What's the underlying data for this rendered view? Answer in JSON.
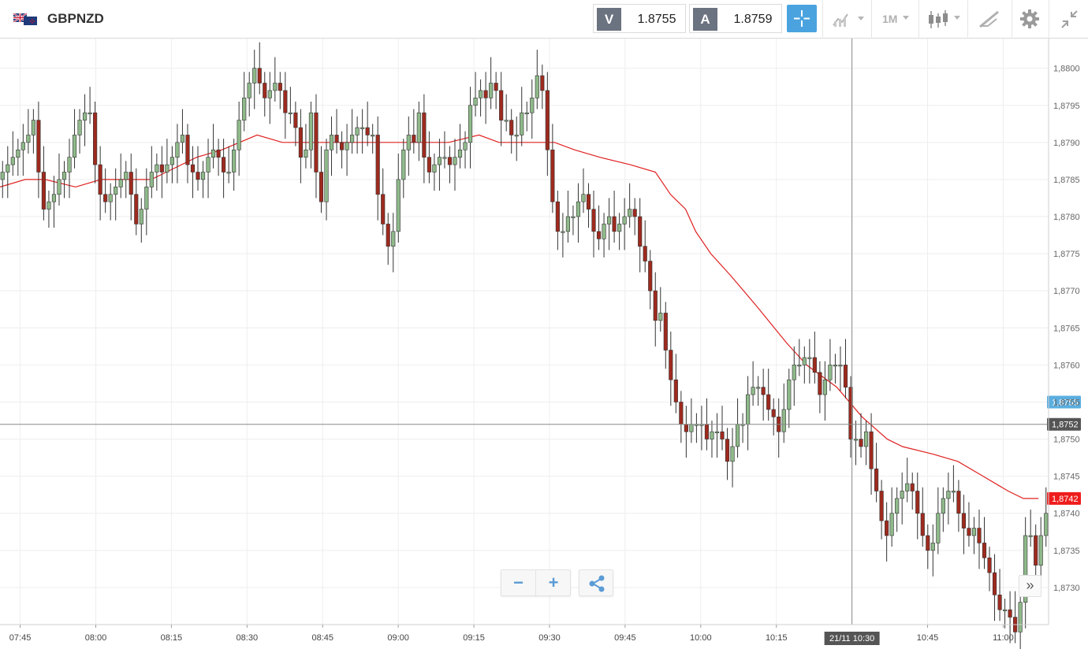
{
  "header": {
    "symbol": "GBPNZD",
    "bid_label": "V",
    "bid_value": "1.8755",
    "ask_label": "A",
    "ask_value": "1.8759",
    "timeframe_label": "1M",
    "icons": {
      "flag": "gbp-nzd-flag-icon",
      "crosshair": "crosshair-icon",
      "chart_type": "line-chart-icon",
      "candles": "candlestick-icon",
      "draw": "drawing-tools-icon",
      "settings": "gear-icon",
      "collapse": "collapse-arrows-icon"
    },
    "colors": {
      "bid_ask_letter_bg": "#6b7280",
      "crosshair_active": "#4aa3df"
    }
  },
  "controls": {
    "zoom_out": "−",
    "zoom_in": "+",
    "share_icon": "share-icon",
    "scroll_right": "»"
  },
  "chart_data": {
    "type": "candlestick",
    "symbol": "GBPNZD",
    "timeframe": "1M",
    "ylim": [
      1.8725,
      1.8804
    ],
    "y_ticks": [
      "1,8730",
      "1,8735",
      "1,8740",
      "1,8745",
      "1,8750",
      "1,8755",
      "1,8760",
      "1,8765",
      "1,8770",
      "1,8775",
      "1,8780",
      "1,8785",
      "1,8790",
      "1,8795",
      "1,8800"
    ],
    "y_tick_values": [
      1.873,
      1.8735,
      1.874,
      1.8745,
      1.875,
      1.8755,
      1.876,
      1.8765,
      1.877,
      1.8775,
      1.878,
      1.8785,
      1.879,
      1.8795,
      1.88
    ],
    "x_ticks": [
      "07:45",
      "08:00",
      "08:15",
      "08:30",
      "08:45",
      "09:00",
      "09:15",
      "09:30",
      "09:45",
      "10:00",
      "10:15",
      "10:45",
      "11:00"
    ],
    "x_tick_minutes": [
      465,
      480,
      495,
      510,
      525,
      540,
      555,
      570,
      585,
      600,
      615,
      645,
      660
    ],
    "x_range_minutes": [
      461,
      669
    ],
    "crosshair": {
      "time_label": "21/11 10:30",
      "minute": 630,
      "price_label": "1,8752",
      "price": 1.8752
    },
    "price_tags": [
      {
        "label": "1,8755",
        "price": 1.8755,
        "color": "#5aaee0"
      },
      {
        "label": "1,8752",
        "price": 1.8752,
        "color": "#555555"
      },
      {
        "label": "1,8742",
        "price": 1.8742,
        "color": "#ee1c1c"
      }
    ],
    "grid": true,
    "colors": {
      "up": "#8fb98a",
      "down": "#9e2a1e",
      "wick": "#333333",
      "ma": "#e02020"
    },
    "moving_average": {
      "minutes": [
        461,
        466,
        470,
        476,
        481,
        488,
        491,
        494,
        500,
        505,
        512,
        517,
        521,
        524,
        530,
        535,
        538,
        542,
        547,
        550,
        556,
        560,
        563,
        566,
        569,
        571,
        575,
        580,
        586,
        591,
        594,
        597,
        599,
        602,
        606,
        611,
        617,
        621,
        627,
        632,
        637,
        640,
        646,
        651,
        656,
        661,
        664,
        667
      ],
      "values": [
        1.8784,
        1.8785,
        1.8785,
        1.8784,
        1.8785,
        1.8785,
        1.8785,
        1.8786,
        1.8788,
        1.8789,
        1.8791,
        1.879,
        1.879,
        1.879,
        1.879,
        1.879,
        1.879,
        1.879,
        1.879,
        1.879,
        1.8791,
        1.879,
        1.879,
        1.879,
        1.879,
        1.879,
        1.8789,
        1.8788,
        1.8787,
        1.8786,
        1.8783,
        1.8781,
        1.8778,
        1.8775,
        1.8772,
        1.8768,
        1.8763,
        1.876,
        1.8757,
        1.8753,
        1.875,
        1.8749,
        1.8748,
        1.8747,
        1.8745,
        1.8743,
        1.8742,
        1.8742
      ]
    },
    "candles": {
      "open": [
        1.8785,
        1.8786,
        1.8787,
        1.8788,
        1.8789,
        1.879,
        1.8791,
        1.8793,
        1.8786,
        1.8781,
        1.8782,
        1.8783,
        1.8785,
        1.8786,
        1.8788,
        1.8791,
        1.8793,
        1.8794,
        1.8794,
        1.8787,
        1.8783,
        1.8782,
        1.8783,
        1.8784,
        1.8785,
        1.8786,
        1.8783,
        1.8779,
        1.8781,
        1.8784,
        1.8786,
        1.8787,
        1.8786,
        1.8787,
        1.8788,
        1.879,
        1.8791,
        1.8787,
        1.8786,
        1.8785,
        1.8786,
        1.8788,
        1.8789,
        1.8788,
        1.8786,
        1.8786,
        1.8789,
        1.8793,
        1.8796,
        1.8798,
        1.88,
        1.8798,
        1.8796,
        1.8797,
        1.8798,
        1.8797,
        1.8794,
        1.8794,
        1.8792,
        1.8788,
        1.8789,
        1.8794,
        1.8786,
        1.8782,
        1.8789,
        1.8791,
        1.879,
        1.8789,
        1.879,
        1.8791,
        1.8792,
        1.8792,
        1.8791,
        1.8791,
        1.8783,
        1.8779,
        1.8776,
        1.8778,
        1.8785,
        1.8789,
        1.8791,
        1.879,
        1.8794,
        1.8788,
        1.8786,
        1.8787,
        1.8788,
        1.8788,
        1.8787,
        1.8788,
        1.8789,
        1.879,
        1.8795,
        1.8796,
        1.8797,
        1.8796,
        1.8798,
        1.8797,
        1.8793,
        1.8793,
        1.8791,
        1.8791,
        1.8794,
        1.8794,
        1.8796,
        1.8799,
        1.8797,
        1.8789,
        1.8782,
        1.8778,
        1.8778,
        1.878,
        1.878,
        1.8782,
        1.8783,
        1.8781,
        1.8778,
        1.8777,
        1.8779,
        1.878,
        1.8778,
        1.8779,
        1.878,
        1.8781,
        1.878,
        1.8776,
        1.8774,
        1.877,
        1.8766,
        1.8767,
        1.8762,
        1.8758,
        1.8755,
        1.8752,
        1.8751,
        1.8752,
        1.8752,
        1.8752,
        1.875,
        1.8751,
        1.8751,
        1.875,
        1.8747,
        1.8749,
        1.8752,
        1.8752,
        1.8756,
        1.8757,
        1.8757,
        1.8756,
        1.8754,
        1.8753,
        1.8751,
        1.8754,
        1.8758,
        1.876,
        1.876,
        1.8761,
        1.8761,
        1.8759,
        1.8756,
        1.8758,
        1.876,
        1.876,
        1.876,
        1.8757,
        1.875,
        1.875,
        1.8749,
        1.8751,
        1.8746,
        1.8743,
        1.8739,
        1.8737,
        1.874,
        1.8742,
        1.8743,
        1.8744,
        1.8743,
        1.874,
        1.8737,
        1.8735,
        1.8736,
        1.874,
        1.8742,
        1.8743,
        1.8743,
        1.874,
        1.8738,
        1.8737,
        1.8738,
        1.8736,
        1.8734,
        1.8732,
        1.8729,
        1.8727,
        1.8727,
        1.8726,
        1.8724,
        1.8728,
        1.8737,
        1.8737,
        1.8733,
        1.8737
      ],
      "close": [
        1.8786,
        1.8787,
        1.8788,
        1.8789,
        1.879,
        1.8791,
        1.8793,
        1.8786,
        1.8781,
        1.8782,
        1.8783,
        1.8785,
        1.8786,
        1.8788,
        1.8791,
        1.8793,
        1.8794,
        1.8794,
        1.8787,
        1.8783,
        1.8782,
        1.8783,
        1.8784,
        1.8785,
        1.8786,
        1.8783,
        1.8779,
        1.8781,
        1.8784,
        1.8786,
        1.8787,
        1.8786,
        1.8787,
        1.8788,
        1.879,
        1.8791,
        1.8787,
        1.8786,
        1.8785,
        1.8786,
        1.8788,
        1.8789,
        1.8788,
        1.8786,
        1.8786,
        1.8789,
        1.8793,
        1.8796,
        1.8798,
        1.88,
        1.8798,
        1.8796,
        1.8797,
        1.8798,
        1.8797,
        1.8794,
        1.8794,
        1.8792,
        1.8788,
        1.8789,
        1.8794,
        1.8786,
        1.8782,
        1.8789,
        1.8791,
        1.879,
        1.8789,
        1.879,
        1.8791,
        1.8792,
        1.8792,
        1.8791,
        1.8791,
        1.8783,
        1.8779,
        1.8776,
        1.8778,
        1.8785,
        1.8789,
        1.8791,
        1.879,
        1.8794,
        1.8788,
        1.8786,
        1.8787,
        1.8788,
        1.8788,
        1.8787,
        1.8788,
        1.8789,
        1.879,
        1.8795,
        1.8796,
        1.8797,
        1.8796,
        1.8798,
        1.8797,
        1.8793,
        1.8793,
        1.8791,
        1.8791,
        1.8794,
        1.8794,
        1.8796,
        1.8799,
        1.8797,
        1.8789,
        1.8782,
        1.8778,
        1.8778,
        1.878,
        1.878,
        1.8782,
        1.8783,
        1.8781,
        1.8778,
        1.8777,
        1.8779,
        1.878,
        1.8778,
        1.8779,
        1.878,
        1.8781,
        1.878,
        1.8776,
        1.8774,
        1.877,
        1.8766,
        1.8767,
        1.8762,
        1.8758,
        1.8755,
        1.8752,
        1.8751,
        1.8752,
        1.8752,
        1.8752,
        1.875,
        1.8751,
        1.8751,
        1.875,
        1.8747,
        1.8749,
        1.8752,
        1.8752,
        1.8756,
        1.8757,
        1.8757,
        1.8756,
        1.8754,
        1.8753,
        1.8751,
        1.8754,
        1.8758,
        1.876,
        1.876,
        1.8761,
        1.8761,
        1.8759,
        1.8756,
        1.8758,
        1.876,
        1.876,
        1.876,
        1.8757,
        1.875,
        1.875,
        1.8749,
        1.8751,
        1.8746,
        1.8743,
        1.8739,
        1.8737,
        1.874,
        1.8742,
        1.8743,
        1.8744,
        1.8743,
        1.874,
        1.8737,
        1.8735,
        1.8736,
        1.874,
        1.8742,
        1.8743,
        1.8743,
        1.874,
        1.8738,
        1.8737,
        1.8738,
        1.8736,
        1.8734,
        1.8732,
        1.8729,
        1.8727,
        1.8727,
        1.8726,
        1.8724,
        1.8728,
        1.8737,
        1.8737,
        1.8733,
        1.8737,
        1.874
      ]
    }
  }
}
